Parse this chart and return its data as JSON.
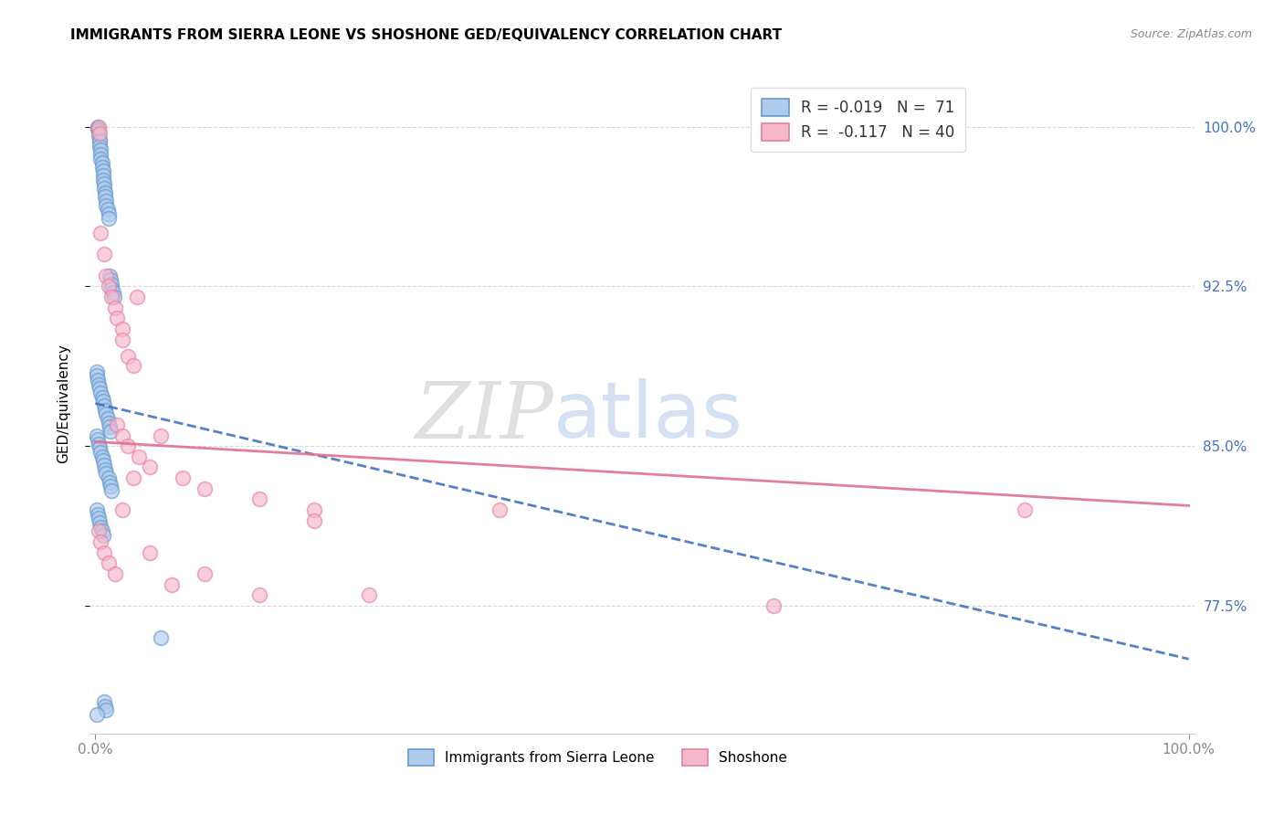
{
  "title": "IMMIGRANTS FROM SIERRA LEONE VS SHOSHONE GED/EQUIVALENCY CORRELATION CHART",
  "source": "Source: ZipAtlas.com",
  "ylabel": "GED/Equivalency",
  "xmin": 0.0,
  "xmax": 1.0,
  "ymin": 0.715,
  "ymax": 1.025,
  "yticks": [
    0.775,
    0.85,
    0.925,
    1.0
  ],
  "ytick_labels": [
    "77.5%",
    "85.0%",
    "92.5%",
    "100.0%"
  ],
  "blue_R": -0.019,
  "blue_N": 71,
  "pink_R": -0.117,
  "pink_N": 40,
  "series1_face": "#aeccee",
  "series1_edge": "#6699cc",
  "series2_face": "#f5b8cb",
  "series2_edge": "#e8809a",
  "trendline1_color": "#4472c4",
  "trendline2_color": "#e07090",
  "grid_color": "#d8d8d8",
  "right_tick_color": "#4472c4",
  "legend1_label": "R = -0.019   N =  71",
  "legend2_label": "R =  -0.117   N = 40",
  "bottom_legend1": "Immigrants from Sierra Leone",
  "bottom_legend2": "Shoshone",
  "blue_trendline_x": [
    0.0,
    1.0
  ],
  "blue_trendline_y": [
    0.87,
    0.75
  ],
  "pink_trendline_x": [
    0.0,
    1.0
  ],
  "pink_trendline_y": [
    0.852,
    0.822
  ],
  "blue_x": [
    0.002,
    0.002,
    0.003,
    0.003,
    0.004,
    0.004,
    0.004,
    0.005,
    0.005,
    0.005,
    0.006,
    0.006,
    0.007,
    0.007,
    0.007,
    0.008,
    0.008,
    0.009,
    0.009,
    0.01,
    0.01,
    0.011,
    0.012,
    0.012,
    0.013,
    0.014,
    0.015,
    0.015,
    0.016,
    0.017,
    0.001,
    0.001,
    0.002,
    0.003,
    0.004,
    0.005,
    0.006,
    0.007,
    0.008,
    0.009,
    0.01,
    0.011,
    0.012,
    0.013,
    0.014,
    0.001,
    0.002,
    0.003,
    0.004,
    0.005,
    0.006,
    0.007,
    0.008,
    0.009,
    0.01,
    0.012,
    0.013,
    0.014,
    0.015,
    0.001,
    0.002,
    0.003,
    0.004,
    0.005,
    0.006,
    0.007,
    0.008,
    0.009,
    0.01,
    0.06,
    0.001
  ],
  "blue_y": [
    1.0,
    0.999,
    0.998,
    0.996,
    0.994,
    0.993,
    0.991,
    0.989,
    0.987,
    0.985,
    0.983,
    0.981,
    0.979,
    0.977,
    0.975,
    0.973,
    0.971,
    0.969,
    0.967,
    0.965,
    0.963,
    0.961,
    0.959,
    0.957,
    0.93,
    0.928,
    0.926,
    0.924,
    0.922,
    0.92,
    0.885,
    0.883,
    0.881,
    0.879,
    0.877,
    0.875,
    0.873,
    0.871,
    0.869,
    0.867,
    0.865,
    0.863,
    0.861,
    0.859,
    0.857,
    0.855,
    0.853,
    0.851,
    0.849,
    0.847,
    0.845,
    0.843,
    0.841,
    0.839,
    0.837,
    0.835,
    0.833,
    0.831,
    0.829,
    0.82,
    0.818,
    0.816,
    0.814,
    0.812,
    0.81,
    0.808,
    0.73,
    0.728,
    0.726,
    0.76,
    0.724
  ],
  "pink_x": [
    0.003,
    0.004,
    0.005,
    0.008,
    0.01,
    0.012,
    0.015,
    0.018,
    0.02,
    0.025,
    0.025,
    0.03,
    0.035,
    0.038,
    0.02,
    0.025,
    0.03,
    0.04,
    0.05,
    0.06,
    0.08,
    0.1,
    0.15,
    0.2,
    0.2,
    0.003,
    0.005,
    0.008,
    0.012,
    0.018,
    0.025,
    0.035,
    0.05,
    0.07,
    0.1,
    0.15,
    0.25,
    0.37,
    0.62,
    0.85
  ],
  "pink_y": [
    1.0,
    0.997,
    0.95,
    0.94,
    0.93,
    0.925,
    0.92,
    0.915,
    0.91,
    0.905,
    0.9,
    0.892,
    0.888,
    0.92,
    0.86,
    0.855,
    0.85,
    0.845,
    0.84,
    0.855,
    0.835,
    0.83,
    0.825,
    0.82,
    0.815,
    0.81,
    0.805,
    0.8,
    0.795,
    0.79,
    0.82,
    0.835,
    0.8,
    0.785,
    0.79,
    0.78,
    0.78,
    0.82,
    0.775,
    0.82
  ]
}
